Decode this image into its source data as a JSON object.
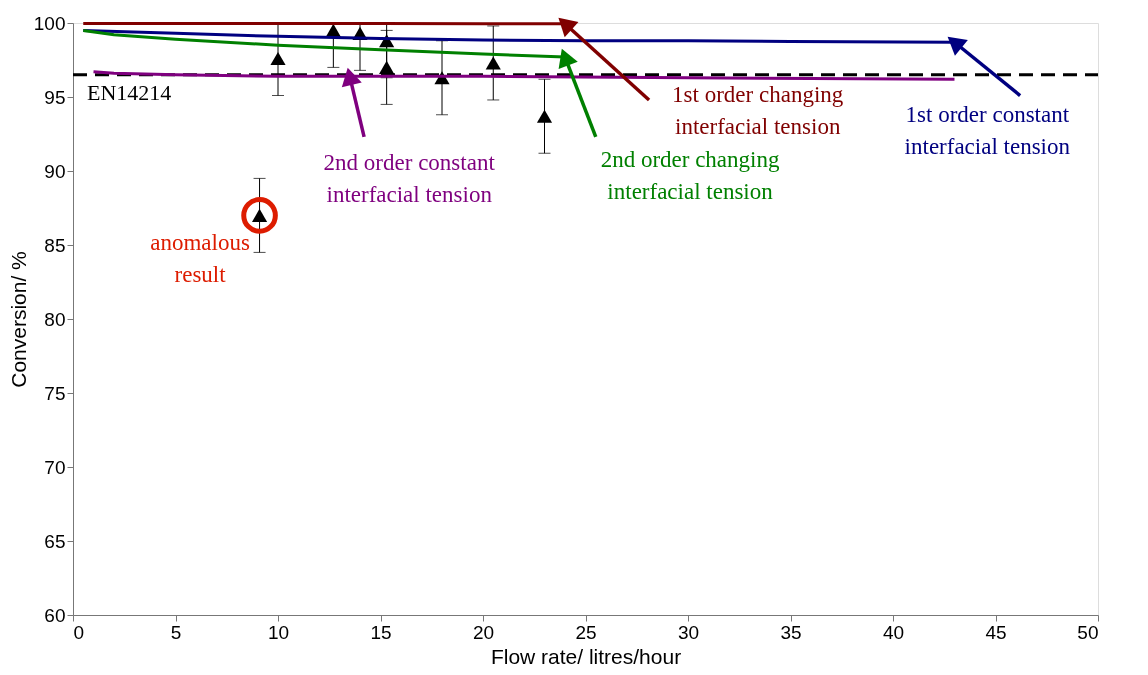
{
  "chart_data": {
    "type": "scatter",
    "xlabel": "Flow rate/ litres/hour",
    "ylabel": "Conversion/ %",
    "xlim": [
      0,
      50
    ],
    "xticks": [
      0,
      5,
      10,
      15,
      20,
      25,
      30,
      35,
      40,
      45,
      50
    ],
    "ylim": [
      60,
      100
    ],
    "yticks": [
      60,
      65,
      70,
      75,
      80,
      85,
      90,
      95,
      100
    ],
    "grid": false,
    "series": [
      {
        "color": "#000000",
        "marker": "triangle",
        "x": [
          9.1,
          10,
          12.7,
          14,
          15.3,
          15.3,
          18,
          20.5,
          23
        ],
        "values": [
          87,
          97.6,
          99.5,
          99.3,
          98.8,
          97.0,
          96.3,
          97.3,
          93.7
        ],
        "errors": [
          2.5,
          [
            95.1,
            100
          ],
          [
            97.0,
            100
          ],
          [
            96.8,
            100
          ],
          [
            96.3,
            100
          ],
          2.5,
          2.5,
          2.5,
          2.5
        ]
      },
      {
        "type": "line",
        "color": "#800000",
        "x": [
          0.5,
          5,
          10,
          15,
          20,
          24
        ],
        "values": [
          99.97,
          99.97,
          99.96,
          99.96,
          99.95,
          99.95
        ]
      },
      {
        "type": "line",
        "color": "#000080",
        "x": [
          0.5,
          5,
          10,
          15,
          20,
          25,
          30,
          35,
          43
        ],
        "values": [
          99.5,
          99.3,
          99.1,
          98.95,
          98.85,
          98.8,
          98.8,
          98.75,
          98.7
        ]
      },
      {
        "type": "line",
        "color": "#008000",
        "x": [
          0.5,
          2,
          5,
          10,
          15,
          20,
          24
        ],
        "values": [
          99.5,
          99.2,
          98.9,
          98.5,
          98.2,
          97.9,
          97.7
        ]
      },
      {
        "type": "line",
        "color": "#7f007f",
        "x": [
          1,
          2,
          5,
          10,
          20,
          30,
          43
        ],
        "values": [
          96.7,
          96.6,
          96.5,
          96.4,
          96.4,
          96.3,
          96.2
        ]
      }
    ],
    "ref_lines": [
      {
        "axis": "y",
        "value": 96.5,
        "label": "EN14214",
        "color": "#000000",
        "line_style": "dashed"
      }
    ],
    "annotations": [
      {
        "text": "2nd order constant\ninterfacial tension",
        "x": 13.5,
        "y": 96.4
      },
      {
        "text": "2nd order changing\ninterfacial tension",
        "x": 24,
        "y": 97.7
      },
      {
        "text": "1st order changing\ninterfacial tension",
        "x": 24,
        "y": 99.95
      },
      {
        "text": "1st order constant\ninterfacial tension",
        "x": 43,
        "y": 98.7
      },
      {
        "text": "anomalous\nresult",
        "x": 9.1,
        "y": 87
      }
    ]
  }
}
